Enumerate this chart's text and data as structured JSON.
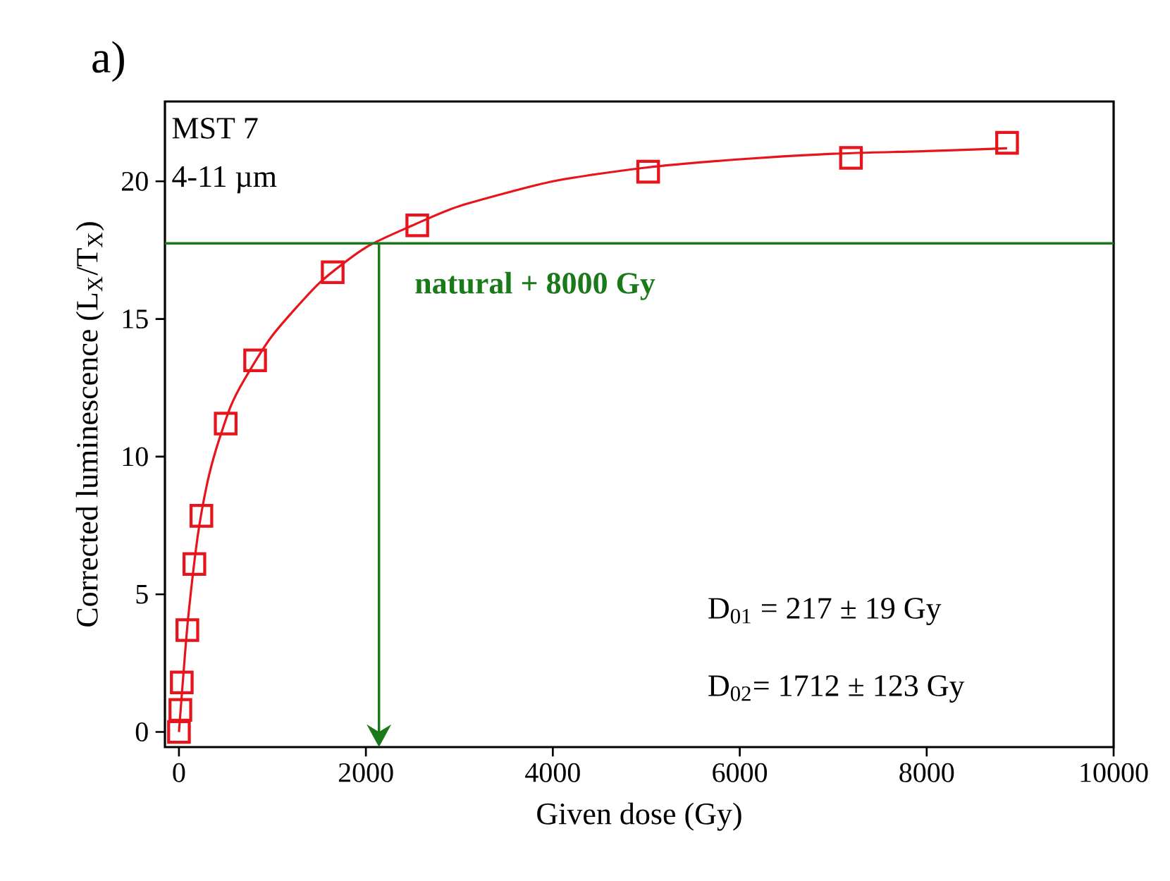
{
  "chart_data": {
    "type": "scatter",
    "xlabel": "Given dose (Gy)",
    "ylabel": "Corrected luminescence (L$_{X}$/T$_{X}$)",
    "xlim": [
      -150,
      10000
    ],
    "ylim": [
      -0.55,
      22.9
    ],
    "xticks": [
      0,
      2000,
      4000,
      6000,
      8000,
      10000
    ],
    "yticks": [
      0,
      5,
      10,
      15,
      20
    ],
    "grid": false,
    "series": [
      {
        "color": "#e8141c",
        "marker": "square",
        "x": [
          0,
          15,
          30,
          90,
          165,
          240,
          500,
          815,
          1645,
          2550,
          5020,
          7190,
          8860
        ],
        "values": [
          0,
          0.8,
          1.8,
          3.7,
          6.1,
          7.85,
          11.2,
          13.5,
          16.7,
          18.4,
          20.35,
          20.85,
          21.4
        ]
      },
      {
        "type": "line",
        "color": "#e8141c",
        "marker": "none",
        "line_style": "solid",
        "x": [
          0,
          50,
          100,
          200,
          300,
          400,
          550,
          700,
          1000,
          1500,
          2000,
          2500,
          3000,
          4000,
          5000,
          6000,
          7000,
          8000,
          8860
        ],
        "values": [
          0,
          2.2,
          4.2,
          7.1,
          9.0,
          10.3,
          11.8,
          12.8,
          14.4,
          16.3,
          17.6,
          18.4,
          19.1,
          20.0,
          20.5,
          20.8,
          21.0,
          21.1,
          21.2
        ]
      }
    ],
    "ref_lines": [
      {
        "axis": "y",
        "value": 17.75,
        "label": "natural + 8000 Gy",
        "color": "#1a7a1a"
      },
      {
        "axis": "x",
        "value": 2140,
        "color": "#1a7a1a"
      }
    ],
    "annotations": [
      "a)",
      "MST 7",
      "4-11 µm",
      "D$_{01}$ = 217 ± 19 Gy",
      "D$_{02}$= 1712 ± 123 Gy"
    ]
  }
}
